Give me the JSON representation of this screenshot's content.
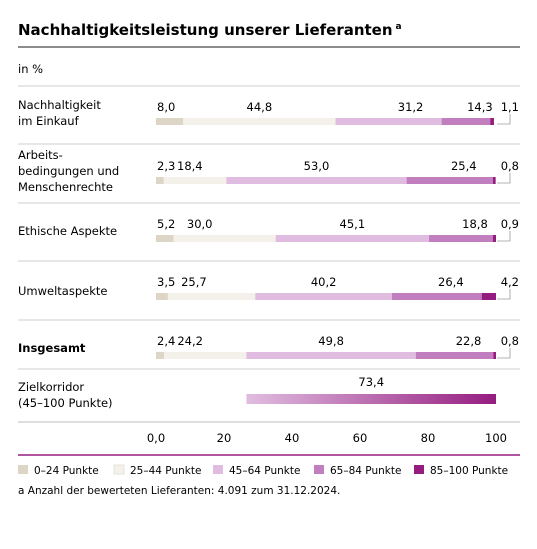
{
  "chart_data": {
    "type": "bar",
    "orientation": "horizontal",
    "stacked": true,
    "title": "Nachhaltigkeitsleistung unserer Lieferanten",
    "title_superscript": "a",
    "unit": "in %",
    "categories": [
      [
        "Nachhaltigkeit",
        "im Einkauf"
      ],
      [
        "Arbeits-",
        "bedingungen und",
        "Menschenrechte"
      ],
      [
        "Ethische Aspekte"
      ],
      [
        "Umweltaspekte"
      ],
      [
        "Insgesamt"
      ]
    ],
    "emphasized_category_index": 4,
    "series": [
      {
        "name": "0–24 Punkte",
        "color": "#ddd5c6",
        "values": [
          8.0,
          2.3,
          5.2,
          3.5,
          2.4
        ],
        "labels": [
          "8,0",
          "2,3",
          "5,2",
          "3,5",
          "2,4"
        ]
      },
      {
        "name": "25–44 Punkte",
        "color": "#f3f1ea",
        "values": [
          44.8,
          18.4,
          30.0,
          25.7,
          24.2
        ],
        "labels": [
          "44,8",
          "18,4",
          "30,0",
          "25,7",
          "24,2"
        ]
      },
      {
        "name": "45–64 Punkte",
        "color": "#e0bde0",
        "values": [
          31.2,
          53.0,
          45.1,
          40.2,
          49.8
        ],
        "labels": [
          "31,2",
          "53,0",
          "45,1",
          "40,2",
          "49,8"
        ]
      },
      {
        "name": "65–84 Punkte",
        "color": "#c27fc0",
        "values": [
          14.3,
          25.4,
          18.8,
          26.4,
          22.8
        ],
        "labels": [
          "14,3",
          "25,4",
          "18,8",
          "26,4",
          "22,8"
        ]
      },
      {
        "name": "85–100 Punkte",
        "color": "#951d80",
        "values": [
          1.1,
          0.8,
          0.9,
          4.2,
          0.8
        ],
        "labels": [
          "1,1",
          "0,8",
          "0,9",
          "4,2",
          "0,8"
        ]
      }
    ],
    "target_corridor": {
      "label": [
        "Zielkorridor",
        "(45–100 Punkte)"
      ],
      "value": 73.4,
      "value_label": "73,4",
      "start": 26.6,
      "end": 100,
      "gradient_from": "#e0bde0",
      "gradient_to": "#951d80"
    },
    "xlim": [
      0,
      100
    ],
    "xticks": [
      0,
      20,
      40,
      60,
      80,
      100
    ],
    "xtick_labels": [
      "0,0",
      "20",
      "40",
      "60",
      "80",
      "100"
    ],
    "legend_position": "bottom",
    "footnote": "a  Anzahl der bewerteten Lieferanten: 4.091 zum 31.12.2024.",
    "accent_color": "#951d80"
  }
}
